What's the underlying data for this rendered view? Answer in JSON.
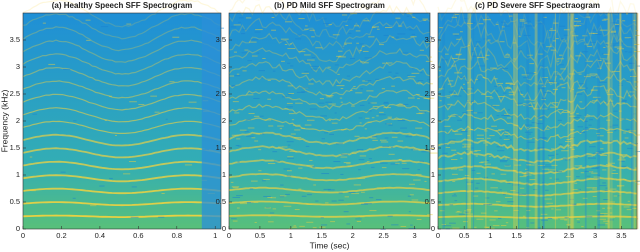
{
  "chart_data": [
    {
      "type": "heatmap",
      "title": "(a) Healthy Speech SFF Spectrogram",
      "ylabel": "Frequency (kHz)",
      "xlim": [
        0,
        1.03
      ],
      "xticks": [
        0,
        0.2,
        0.4,
        0.6,
        0.8,
        1
      ],
      "ylim": [
        0,
        4
      ],
      "yticks": [
        0,
        0.5,
        1,
        1.5,
        2,
        2.5,
        3,
        3.5
      ]
    },
    {
      "type": "heatmap",
      "title": "(b) PD Mild SFF Spectrogram",
      "xlabel": "Time (sec)",
      "xlim": [
        0,
        3.25
      ],
      "xticks": [
        0,
        0.5,
        1,
        1.5,
        2,
        2.5,
        3
      ],
      "ylim": [
        0,
        4
      ],
      "yticks": [
        0,
        0.5,
        1,
        1.5,
        2,
        2.5,
        3,
        3.5
      ]
    },
    {
      "type": "heatmap",
      "title": "(c) PD Severe SFF Spectraogram",
      "xlim": [
        0,
        3.8
      ],
      "xticks": [
        0,
        0.5,
        1,
        1.5,
        2,
        2.5,
        3,
        3.5
      ],
      "ylim": [
        0,
        4
      ],
      "yticks": [
        0,
        0.5,
        1,
        1.5,
        2,
        2.5,
        3,
        3.5
      ]
    }
  ]
}
